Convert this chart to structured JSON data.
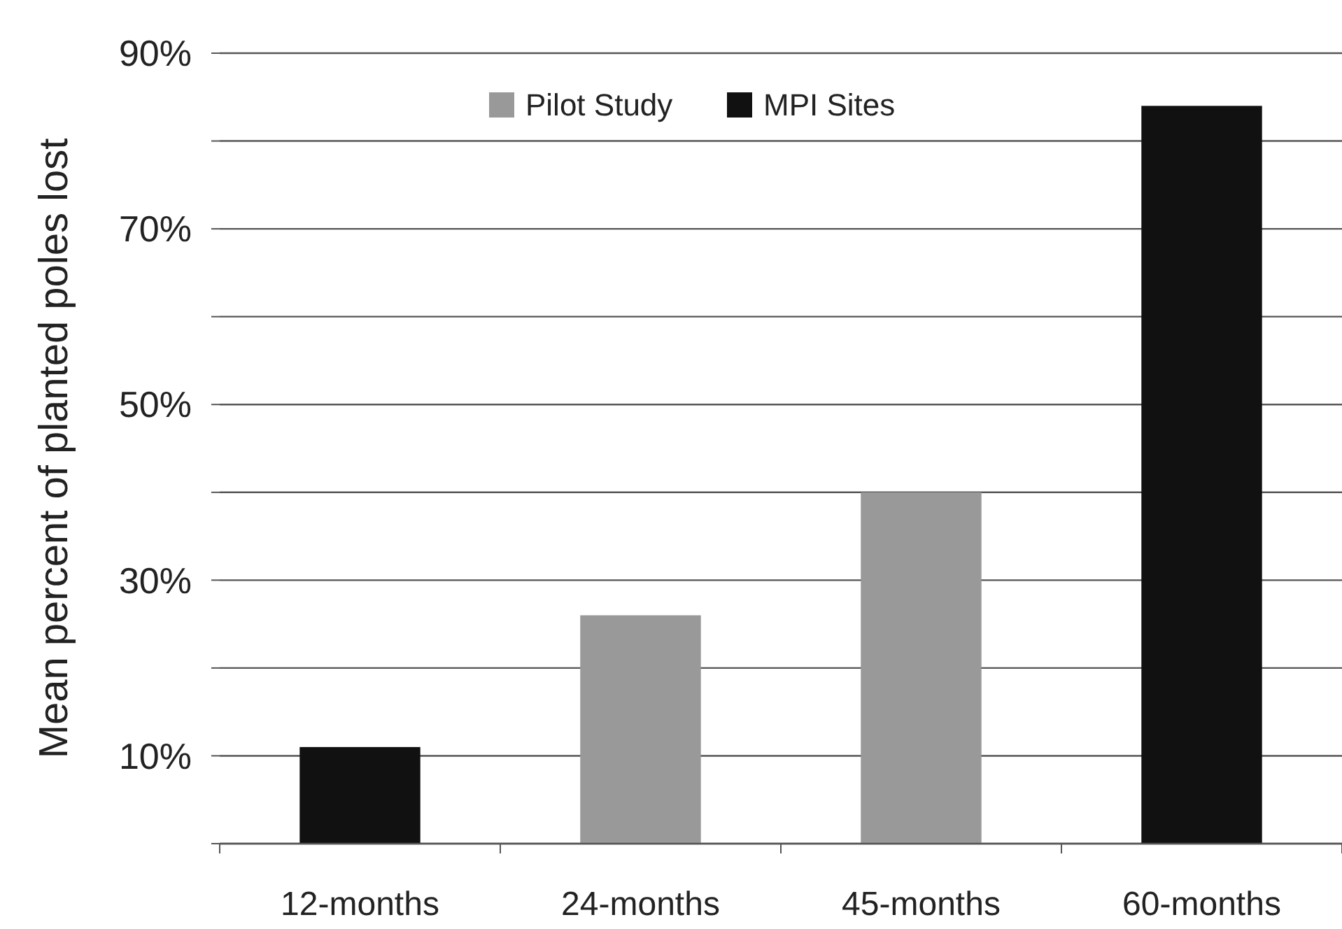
{
  "chart_data": {
    "type": "bar",
    "ylabel": "Mean percent of planted poles lost",
    "categories": [
      "12-months",
      "24-months",
      "45-months",
      "60-months"
    ],
    "series": [
      {
        "name": "Pilot Study",
        "color": "#999999",
        "values": [
          null,
          26,
          40,
          null
        ]
      },
      {
        "name": "MPI Sites",
        "color": "#111111",
        "values": [
          11,
          null,
          null,
          84
        ]
      }
    ],
    "ylim": [
      0,
      90
    ],
    "yticks": [
      {
        "value": 0,
        "label": null
      },
      {
        "value": 10,
        "label": "10%"
      },
      {
        "value": 20,
        "label": null
      },
      {
        "value": 30,
        "label": "30%"
      },
      {
        "value": 40,
        "label": null
      },
      {
        "value": 50,
        "label": "50%"
      },
      {
        "value": 60,
        "label": null
      },
      {
        "value": 70,
        "label": "70%"
      },
      {
        "value": 80,
        "label": null
      },
      {
        "value": 90,
        "label": "90%"
      }
    ],
    "grid": "y",
    "legend": "top"
  }
}
